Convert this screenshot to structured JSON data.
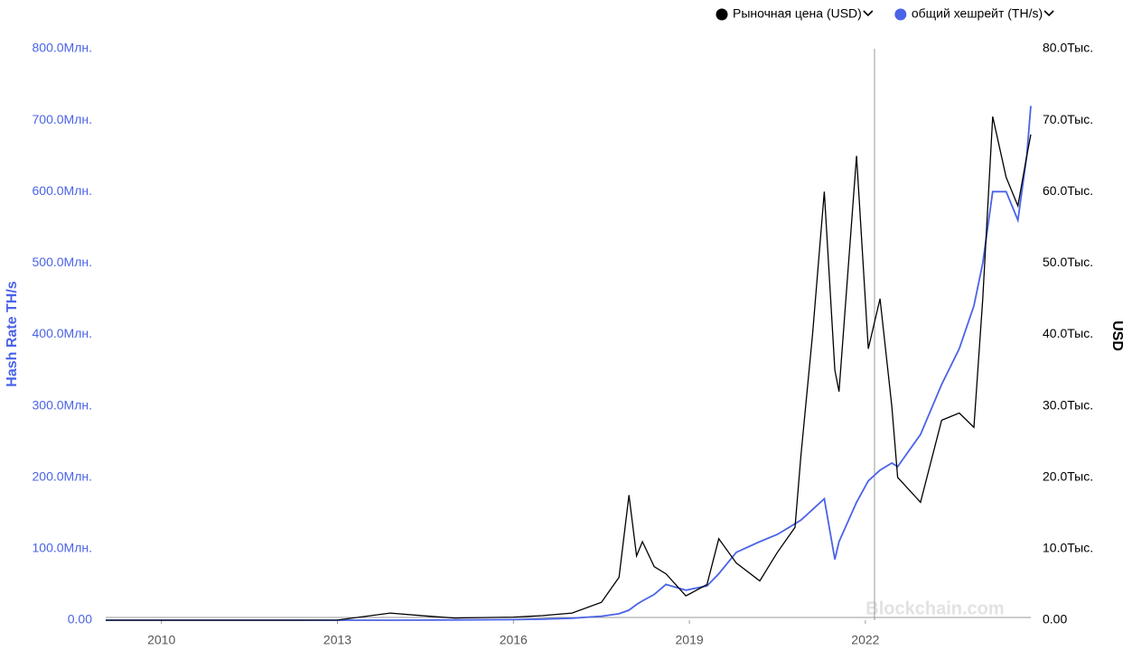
{
  "chart_data": {
    "type": "line",
    "y_label": "Hash Rate TH/s",
    "y2_label": "USD",
    "watermark": "Blockchain.com",
    "x": [
      2009.05,
      2010,
      2011,
      2012,
      2013,
      2013.9,
      2014.5,
      2015,
      2016,
      2016.5,
      2017,
      2017.5,
      2017.8,
      2017.97,
      2018.1,
      2018.2,
      2018.4,
      2018.6,
      2018.94,
      2019.3,
      2019.5,
      2019.8,
      2020.2,
      2020.5,
      2020.8,
      2020.9,
      2021.1,
      2021.3,
      2021.48,
      2021.55,
      2021.85,
      2022.05,
      2022.25,
      2022.45,
      2022.55,
      2022.94,
      2023.3,
      2023.6,
      2023.85,
      2024,
      2024.17,
      2024.4,
      2024.6,
      2024.75,
      2024.82
    ],
    "series": [
      {
        "name": "Рыночная цена (USD)",
        "color": "#000000",
        "axis": "y2",
        "values": [
          0,
          0.1,
          0.3,
          5,
          13,
          1000,
          600,
          300,
          430,
          650,
          1000,
          2500,
          6000,
          17500,
          9000,
          11000,
          7500,
          6500,
          3400,
          5000,
          11400,
          8000,
          5500,
          9500,
          13000,
          23000,
          40000,
          60000,
          35000,
          32000,
          65000,
          38000,
          45000,
          30000,
          20000,
          16500,
          28000,
          29000,
          27000,
          45000,
          70500,
          62000,
          58000,
          65000,
          68000
        ]
      },
      {
        "name": "общий хешрейт (TH/s)",
        "color": "#4a63e7",
        "values": [
          0,
          0,
          10,
          15,
          25,
          10000,
          150000,
          330000,
          800000,
          1500000,
          2800000,
          5500000,
          9000000,
          14000000,
          22000000,
          27000000,
          36000000,
          50000000,
          42000000,
          48000000,
          65000000,
          95000000,
          110000000,
          120000000,
          135000000,
          140000000,
          155000000,
          170000000,
          85000000,
          110000000,
          165000000,
          195000000,
          210000000,
          220000000,
          215000000,
          260000000,
          330000000,
          380000000,
          440000000,
          500000000,
          600000000,
          600000000,
          560000000,
          650000000,
          720000000
        ]
      }
    ],
    "xlim": [
      2009.05,
      2024.82
    ],
    "xticks": [
      2010,
      2013,
      2016,
      2019,
      2022
    ],
    "ylim": [
      0,
      800000000
    ],
    "yticks": [
      {
        "value": 0,
        "label": "0.00"
      },
      {
        "value": 100000000,
        "label": "100.0Млн."
      },
      {
        "value": 200000000,
        "label": "200.0Млн."
      },
      {
        "value": 300000000,
        "label": "300.0Млн."
      },
      {
        "value": 400000000,
        "label": "400.0Млн."
      },
      {
        "value": 500000000,
        "label": "500.0Млн."
      },
      {
        "value": 600000000,
        "label": "600.0Млн."
      },
      {
        "value": 700000000,
        "label": "700.0Млн."
      },
      {
        "value": 800000000,
        "label": "800.0Млн."
      }
    ],
    "y2lim": [
      0,
      80000
    ],
    "y2ticks": [
      {
        "value": 0,
        "label": "0.00"
      },
      {
        "value": 10000,
        "label": "10.0Тыс."
      },
      {
        "value": 20000,
        "label": "20.0Тыс."
      },
      {
        "value": 30000,
        "label": "30.0Тыс."
      },
      {
        "value": 40000,
        "label": "40.0Тыс."
      },
      {
        "value": 50000,
        "label": "50.0Тыс."
      },
      {
        "value": 60000,
        "label": "60.0Тыс."
      },
      {
        "value": 70000,
        "label": "70.0Тыс."
      },
      {
        "value": 80000,
        "label": "80.0Тыс."
      }
    ],
    "legend": "top-right"
  }
}
